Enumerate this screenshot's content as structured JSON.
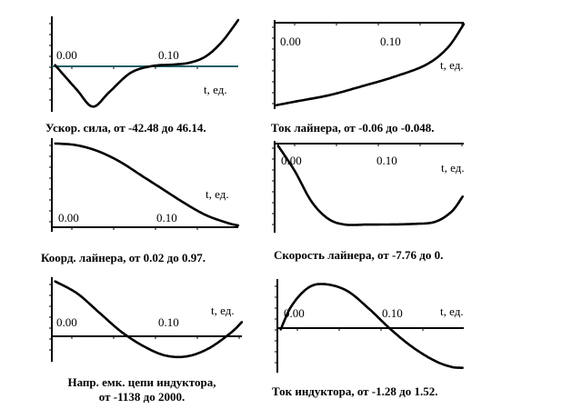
{
  "chart_data": [
    {
      "type": "line",
      "x_tick_labels": [
        "0.00",
        "0.10"
      ],
      "x_axis_label": "t, ед.",
      "caption": "Ускор. сила, от -42.48 до 46.14.",
      "x": [
        0.0,
        0.02,
        0.035,
        0.05,
        0.07,
        0.09,
        0.11,
        0.125,
        0.14,
        0.155,
        0.17
      ],
      "y": [
        0,
        -25,
        -42.48,
        -28,
        -8,
        -1,
        0.5,
        2.5,
        9,
        24,
        46.14
      ],
      "xlim": [
        -0.003,
        0.17
      ],
      "ylim": [
        -45,
        48
      ],
      "color": "#000000",
      "secondary_line_color": "#2a7f8a"
    },
    {
      "type": "line",
      "x_tick_labels": [
        "0.00",
        "0.10"
      ],
      "x_axis_label": "t, ед.",
      "caption": "Ток лайнера, от -0.06 до -0.048.",
      "x": [
        0.0,
        0.02,
        0.05,
        0.08,
        0.11,
        0.14,
        0.16,
        0.175
      ],
      "y": [
        -0.06,
        -0.0594,
        -0.0585,
        -0.0572,
        -0.0558,
        -0.054,
        -0.0515,
        -0.048
      ],
      "xlim": [
        -0.003,
        0.175
      ],
      "ylim": [
        -0.0603,
        -0.0478
      ],
      "color": "#000000"
    },
    {
      "type": "line",
      "x_tick_labels": [
        "0.00",
        "0.10"
      ],
      "x_axis_label": "t, ед.",
      "caption": "Коорд. лайнера, от 0.02 до 0.97.",
      "x": [
        0.0,
        0.02,
        0.04,
        0.06,
        0.08,
        0.1,
        0.12,
        0.14,
        0.16,
        0.17
      ],
      "y": [
        0.97,
        0.95,
        0.88,
        0.76,
        0.6,
        0.44,
        0.28,
        0.14,
        0.05,
        0.02
      ],
      "xlim": [
        -0.003,
        0.17
      ],
      "ylim": [
        0.0,
        1.0
      ],
      "color": "#000000"
    },
    {
      "type": "line",
      "x_tick_labels": [
        "0.00",
        "0.10"
      ],
      "x_axis_label": "t, ед.",
      "caption": "Скорость лайнера, от -7.76 до 0.",
      "x": [
        0.0,
        0.015,
        0.03,
        0.045,
        0.06,
        0.08,
        0.1,
        0.12,
        0.14,
        0.155,
        0.165
      ],
      "y": [
        0,
        -2.5,
        -5.5,
        -7.2,
        -7.76,
        -7.76,
        -7.75,
        -7.7,
        -7.5,
        -6.5,
        -5.0
      ],
      "xlim": [
        -0.003,
        0.166
      ],
      "ylim": [
        -8.2,
        0.2
      ],
      "color": "#000000"
    },
    {
      "type": "line",
      "x_tick_labels": [
        "0.00",
        "0.10"
      ],
      "x_axis_label": "t, ед.",
      "caption_lines": [
        "Напр. емк. цепи индуктора,",
        "от -1138 до 2000."
      ],
      "x": [
        0.0,
        0.02,
        0.04,
        0.06,
        0.08,
        0.1,
        0.12,
        0.14,
        0.16,
        0.17
      ],
      "y": [
        2000,
        1500,
        700,
        -100,
        -700,
        -1100,
        -1138,
        -800,
        -150,
        300
      ],
      "xlim": [
        -0.003,
        0.17
      ],
      "ylim": [
        -1250,
        2100
      ],
      "color": "#000000"
    },
    {
      "type": "line",
      "x_tick_labels": [
        "0.00",
        "0.10"
      ],
      "x_axis_label": "t, ед.",
      "caption": "Ток индуктора, от -1.28 до 1.52.",
      "x": [
        0.0,
        0.01,
        0.025,
        0.04,
        0.06,
        0.08,
        0.1,
        0.12,
        0.14,
        0.155,
        0.165
      ],
      "y": [
        0,
        0.8,
        1.4,
        1.52,
        1.3,
        0.7,
        0.0,
        -0.6,
        -1.05,
        -1.25,
        -1.28
      ],
      "xlim": [
        -0.003,
        0.166
      ],
      "ylim": [
        -1.35,
        1.6
      ],
      "color": "#000000"
    }
  ]
}
